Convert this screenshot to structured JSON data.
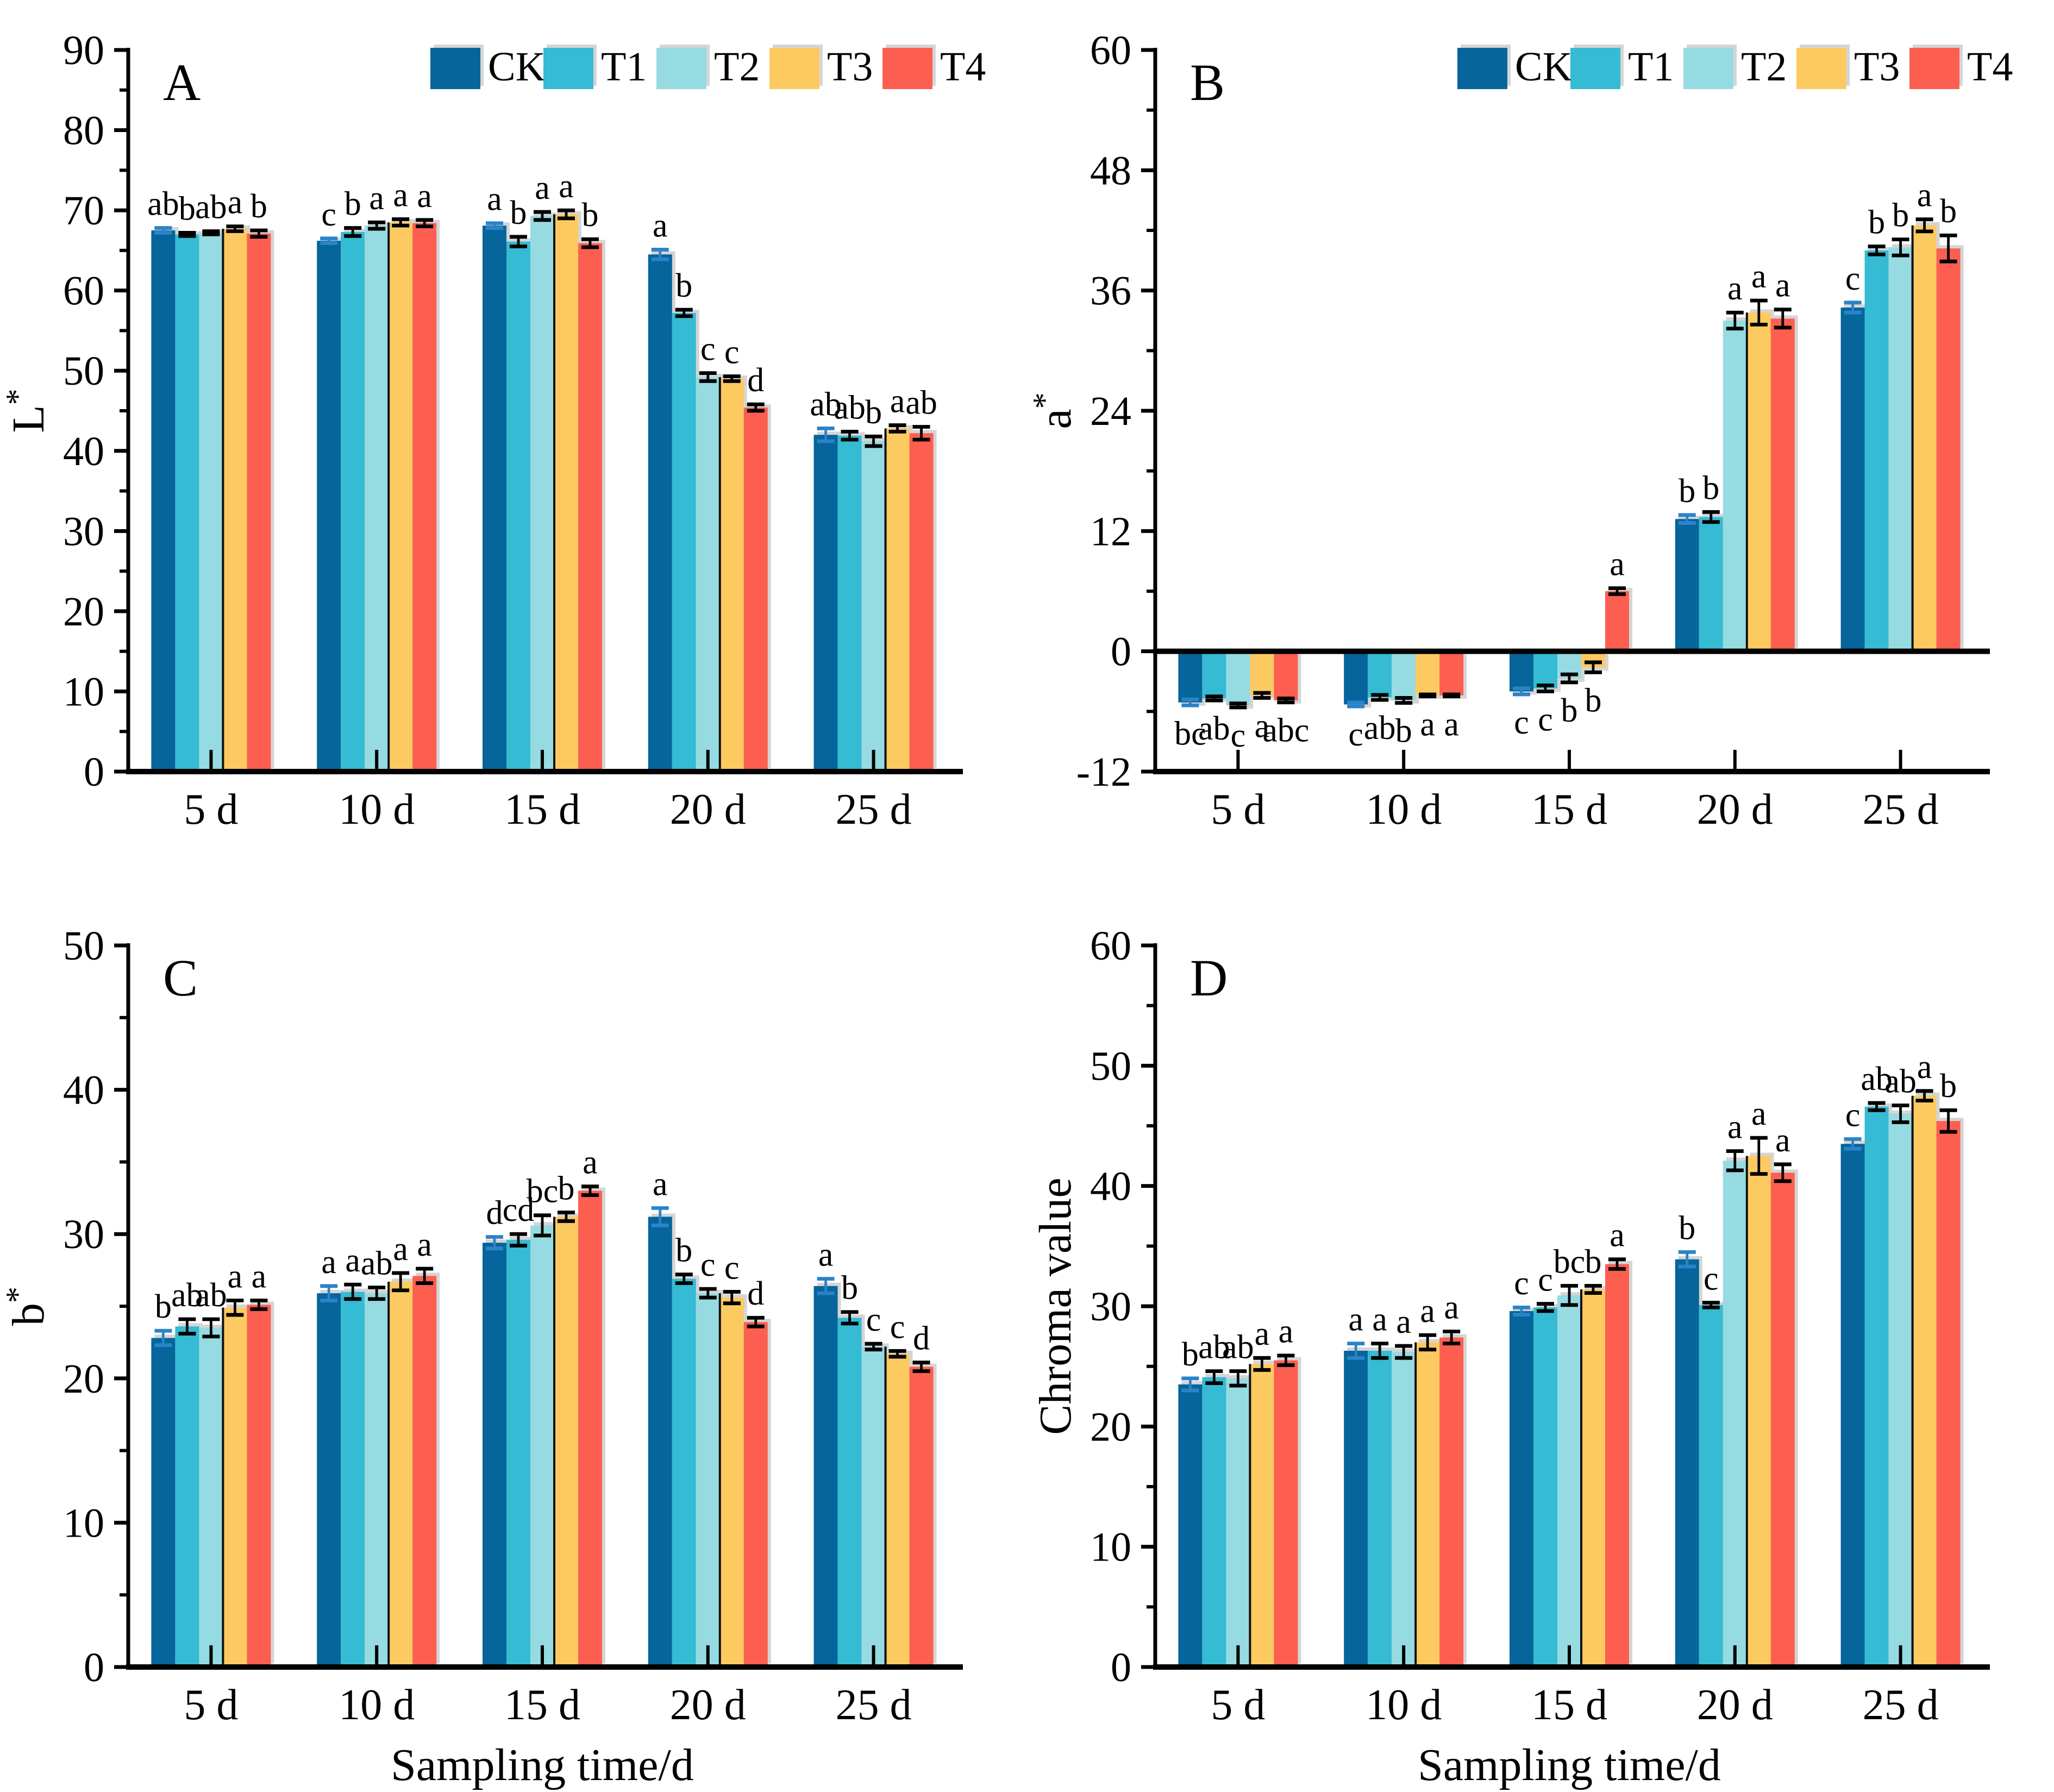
{
  "categories": [
    "5 d",
    "10 d",
    "15 d",
    "20 d",
    "25 d"
  ],
  "x_axis_label": "Sampling time/d",
  "treatments": [
    {
      "name": "CK",
      "color": "#06659b"
    },
    {
      "name": "T1",
      "color": "#35bbd3"
    },
    {
      "name": "T2",
      "color": "#96dbe1"
    },
    {
      "name": "T3",
      "color": "#fdca62"
    },
    {
      "name": "T4",
      "color": "#fc5f50"
    }
  ],
  "error_bar_colors": {
    "CK": "#2b83c9",
    "default": "#000000"
  },
  "chart_data": [
    {
      "type": "bar",
      "panel_label": "A",
      "ylabel": "L*",
      "ylim": [
        0,
        90
      ],
      "ystep": 10,
      "show_legend": true,
      "xlabel": "",
      "categories": [
        "5 d",
        "10 d",
        "15 d",
        "20 d",
        "25 d"
      ],
      "series": [
        {
          "name": "CK",
          "values": [
            67.5,
            66.2,
            68.1,
            64.5,
            42.0
          ],
          "errors": [
            0.3,
            0.3,
            0.3,
            0.6,
            0.8
          ],
          "letters": [
            "ab",
            "c",
            "a",
            "a",
            "ab"
          ]
        },
        {
          "name": "T1",
          "values": [
            67.0,
            67.3,
            66.1,
            57.2,
            41.9
          ],
          "errors": [
            0.2,
            0.5,
            0.6,
            0.4,
            0.5
          ],
          "letters": [
            "b",
            "b",
            "b",
            "b",
            "ab"
          ]
        },
        {
          "name": "T2",
          "values": [
            67.2,
            68.1,
            69.3,
            49.2,
            41.2
          ],
          "errors": [
            0.2,
            0.4,
            0.5,
            0.5,
            0.6
          ],
          "letters": [
            "ab",
            "a",
            "a",
            "c",
            "b"
          ]
        },
        {
          "name": "T3",
          "values": [
            67.7,
            68.5,
            69.5,
            49.0,
            42.8
          ],
          "errors": [
            0.3,
            0.4,
            0.5,
            0.3,
            0.4
          ],
          "letters": [
            "a",
            "a",
            "a",
            "c",
            "a"
          ]
        },
        {
          "name": "T4",
          "values": [
            67.1,
            68.4,
            65.9,
            45.4,
            42.2
          ],
          "errors": [
            0.4,
            0.4,
            0.5,
            0.4,
            0.8
          ],
          "letters": [
            "b",
            "a",
            "b",
            "d",
            "ab"
          ]
        }
      ]
    },
    {
      "type": "bar",
      "panel_label": "B",
      "ylabel": "a*",
      "ylim": [
        -12,
        60
      ],
      "ystep": 12,
      "show_legend": true,
      "xlabel": "",
      "categories": [
        "5 d",
        "10 d",
        "15 d",
        "20 d",
        "25 d"
      ],
      "series": [
        {
          "name": "CK",
          "values": [
            -5.1,
            -5.3,
            -4.0,
            13.2,
            34.3
          ],
          "errors": [
            0.3,
            0.2,
            0.3,
            0.4,
            0.5
          ],
          "letters": [
            "bc",
            "c",
            "c",
            "b",
            "c"
          ]
        },
        {
          "name": "T1",
          "values": [
            -4.7,
            -4.6,
            -3.7,
            13.4,
            40.0
          ],
          "errors": [
            0.2,
            0.25,
            0.3,
            0.5,
            0.4
          ],
          "letters": [
            "ab",
            "ab",
            "c",
            "b",
            "b"
          ]
        },
        {
          "name": "T2",
          "values": [
            -5.4,
            -4.9,
            -2.7,
            33.0,
            40.3
          ],
          "errors": [
            0.2,
            0.25,
            0.4,
            0.8,
            0.8
          ],
          "letters": [
            "c",
            "b",
            "b",
            "a",
            "b"
          ]
        },
        {
          "name": "T3",
          "values": [
            -4.4,
            -4.4,
            -1.6,
            33.8,
            42.5
          ],
          "errors": [
            0.25,
            0.1,
            0.5,
            1.2,
            0.6
          ],
          "letters": [
            "a",
            "a",
            "b",
            "a",
            "a"
          ]
        },
        {
          "name": "T4",
          "values": [
            -4.9,
            -4.4,
            6.0,
            33.2,
            40.2
          ],
          "errors": [
            0.2,
            0.1,
            0.3,
            0.9,
            1.3
          ],
          "letters": [
            "abc",
            "a",
            "a",
            "a",
            "b"
          ]
        }
      ]
    },
    {
      "type": "bar",
      "panel_label": "C",
      "ylabel": "b*",
      "ylim": [
        0,
        50
      ],
      "ystep": 10,
      "show_legend": false,
      "xlabel": "Sampling time/d",
      "categories": [
        "5 d",
        "10 d",
        "15 d",
        "20 d",
        "25 d"
      ],
      "series": [
        {
          "name": "CK",
          "values": [
            22.8,
            25.9,
            29.4,
            31.2,
            26.4
          ],
          "errors": [
            0.5,
            0.5,
            0.4,
            0.6,
            0.5
          ],
          "letters": [
            "b",
            "a",
            "d",
            "a",
            "a"
          ]
        },
        {
          "name": "T1",
          "values": [
            23.6,
            26.0,
            29.6,
            26.9,
            24.2
          ],
          "errors": [
            0.5,
            0.5,
            0.4,
            0.3,
            0.4
          ],
          "letters": [
            "ab",
            "a",
            "cd",
            "b",
            "b"
          ]
        },
        {
          "name": "T2",
          "values": [
            23.5,
            25.9,
            30.6,
            25.9,
            22.2
          ],
          "errors": [
            0.6,
            0.4,
            0.7,
            0.3,
            0.2
          ],
          "letters": [
            "ab",
            "ab",
            "bc",
            "c",
            "c"
          ]
        },
        {
          "name": "T3",
          "values": [
            24.9,
            26.7,
            31.2,
            25.6,
            21.7
          ],
          "errors": [
            0.5,
            0.6,
            0.3,
            0.4,
            0.2
          ],
          "letters": [
            "a",
            "a",
            "b",
            "c",
            "c"
          ]
        },
        {
          "name": "T4",
          "values": [
            25.1,
            27.1,
            33.0,
            23.9,
            20.8
          ],
          "errors": [
            0.3,
            0.5,
            0.3,
            0.3,
            0.3
          ],
          "letters": [
            "a",
            "a",
            "a",
            "d",
            "d"
          ]
        }
      ]
    },
    {
      "type": "bar",
      "panel_label": "D",
      "ylabel": "Chroma value",
      "ylim": [
        0,
        60
      ],
      "ystep": 10,
      "show_legend": false,
      "xlabel": "Sampling time/d",
      "categories": [
        "5 d",
        "10 d",
        "15 d",
        "20 d",
        "25 d"
      ],
      "series": [
        {
          "name": "CK",
          "values": [
            23.5,
            26.3,
            29.6,
            33.9,
            43.5
          ],
          "errors": [
            0.5,
            0.6,
            0.3,
            0.6,
            0.4
          ],
          "letters": [
            "b",
            "a",
            "c",
            "b",
            "c"
          ]
        },
        {
          "name": "T1",
          "values": [
            24.1,
            26.3,
            29.9,
            30.1,
            46.6
          ],
          "errors": [
            0.5,
            0.6,
            0.3,
            0.2,
            0.3
          ],
          "letters": [
            "ab",
            "a",
            "c",
            "c",
            "ab"
          ]
        },
        {
          "name": "T2",
          "values": [
            24.0,
            26.2,
            30.9,
            42.1,
            46.0
          ],
          "errors": [
            0.6,
            0.5,
            0.8,
            0.8,
            0.7
          ],
          "letters": [
            "ab",
            "a",
            "bc",
            "a",
            "ab"
          ]
        },
        {
          "name": "T3",
          "values": [
            25.2,
            27.0,
            31.4,
            42.5,
            47.5
          ],
          "errors": [
            0.5,
            0.6,
            0.3,
            1.5,
            0.4
          ],
          "letters": [
            "a",
            "a",
            "b",
            "a",
            "a"
          ]
        },
        {
          "name": "T4",
          "values": [
            25.5,
            27.4,
            33.5,
            41.1,
            45.4
          ],
          "errors": [
            0.4,
            0.5,
            0.4,
            0.7,
            0.9
          ],
          "letters": [
            "a",
            "a",
            "a",
            "a",
            "b"
          ]
        }
      ]
    }
  ]
}
